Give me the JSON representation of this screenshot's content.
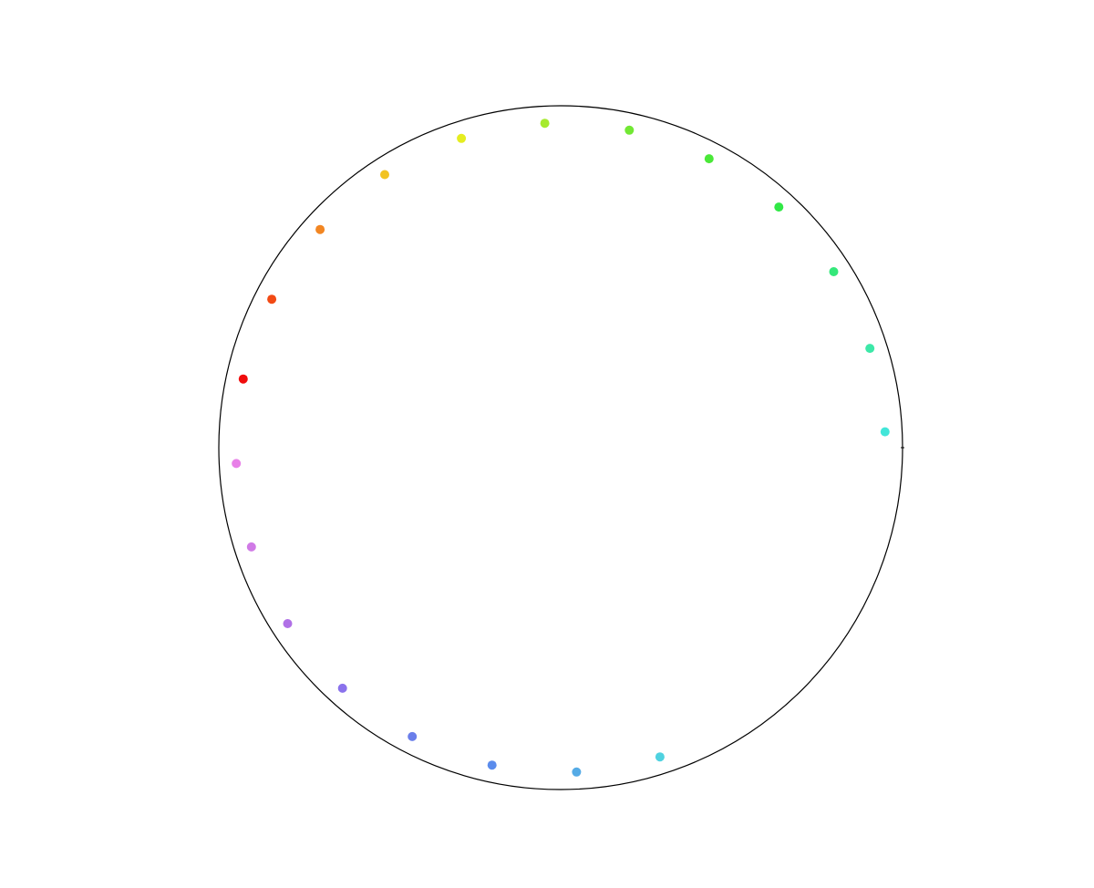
{
  "chart_data": {
    "type": "scatter",
    "coordinate_system": "polar",
    "axis_visible": false,
    "grid": false,
    "legend": "none",
    "outer_ring": {
      "stroke": "#000000"
    },
    "points": [
      {
        "angle_deg": 0,
        "radius": 0.95,
        "color": "#42e6d9"
      },
      {
        "angle_deg": 15,
        "radius": 0.95,
        "color": "#3ce8a8"
      },
      {
        "angle_deg": 30,
        "radius": 0.95,
        "color": "#34e87a"
      },
      {
        "angle_deg": 45,
        "radius": 0.95,
        "color": "#31e846"
      },
      {
        "angle_deg": 60,
        "radius": 0.95,
        "color": "#4ae838"
      },
      {
        "angle_deg": 75,
        "radius": 0.95,
        "color": "#72e834"
      },
      {
        "angle_deg": 90,
        "radius": 0.95,
        "color": "#a6ea2e"
      },
      {
        "angle_deg": 105,
        "radius": 0.95,
        "color": "#e5ed20"
      },
      {
        "angle_deg": 120,
        "radius": 0.95,
        "color": "#f2c322"
      },
      {
        "angle_deg": 135,
        "radius": 0.95,
        "color": "#f28622"
      },
      {
        "angle_deg": 150,
        "radius": 0.95,
        "color": "#f24a14"
      },
      {
        "angle_deg": 165,
        "radius": 0.95,
        "color": "#f00c0c"
      },
      {
        "angle_deg": 180,
        "radius": 0.95,
        "color": "#e880e8"
      },
      {
        "angle_deg": 195,
        "radius": 0.95,
        "color": "#d07ae6"
      },
      {
        "angle_deg": 210,
        "radius": 0.95,
        "color": "#b070e6"
      },
      {
        "angle_deg": 225,
        "radius": 0.95,
        "color": "#8a72ec"
      },
      {
        "angle_deg": 240,
        "radius": 0.95,
        "color": "#6a7eea"
      },
      {
        "angle_deg": 255,
        "radius": 0.95,
        "color": "#5b8cec"
      },
      {
        "angle_deg": 270,
        "radius": 0.95,
        "color": "#55abe6"
      },
      {
        "angle_deg": 285,
        "radius": 0.95,
        "color": "#4fd2e0"
      }
    ]
  }
}
